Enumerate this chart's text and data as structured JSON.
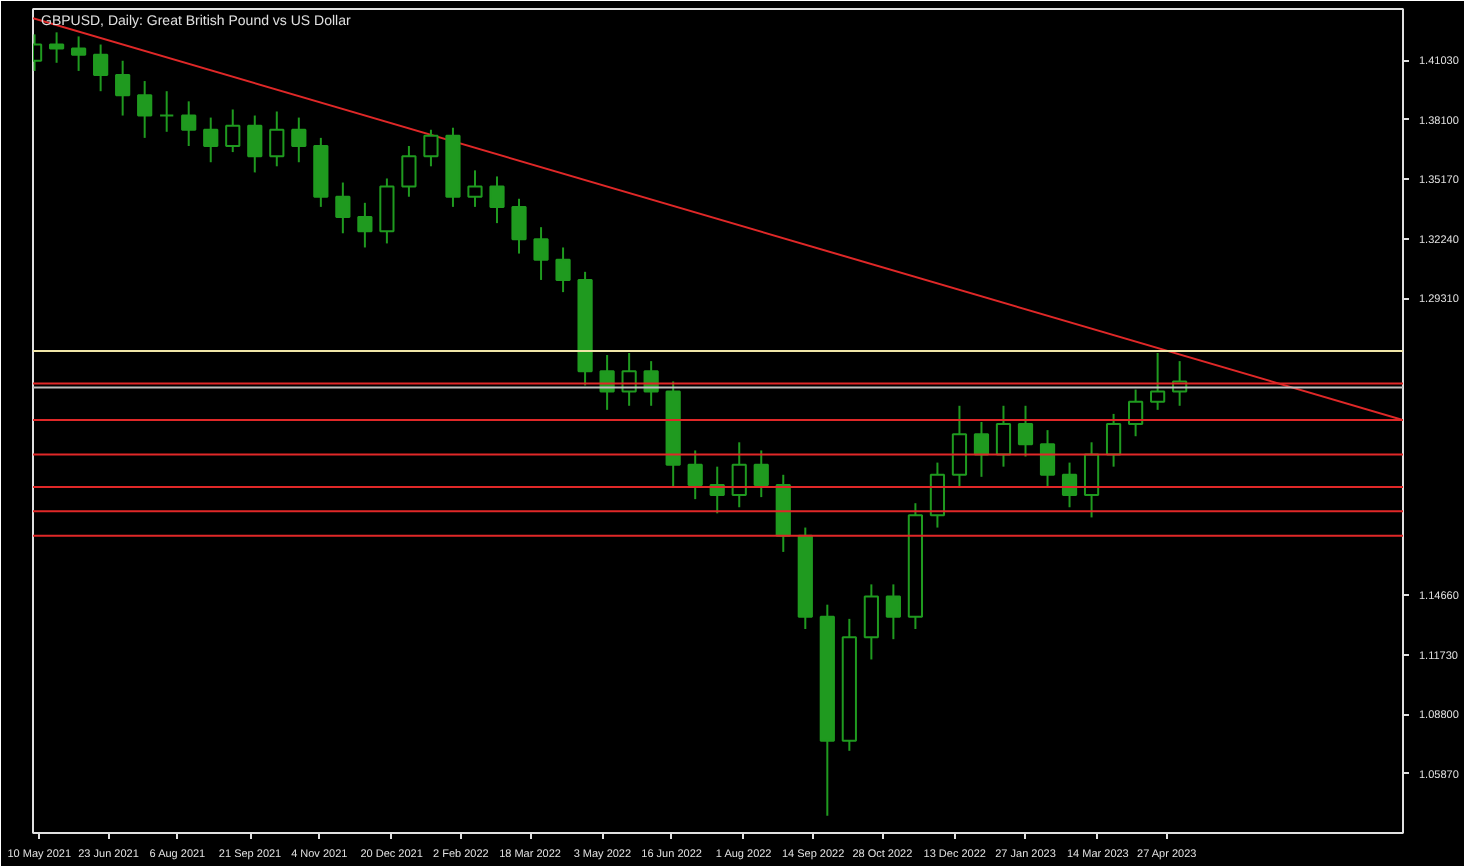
{
  "chart_data": {
    "type": "candlestick",
    "title": "GBPUSD, Daily:  Great British Pound vs US Dollar",
    "x": [
      "2021-05-07",
      "2021-05-21",
      "2021-06-04",
      "2021-06-18",
      "2021-07-02",
      "2021-07-16",
      "2021-07-30",
      "2021-08-13",
      "2021-08-27",
      "2021-09-10",
      "2021-09-24",
      "2021-10-08",
      "2021-10-22",
      "2021-11-05",
      "2021-11-19",
      "2021-12-03",
      "2021-12-17",
      "2021-12-31",
      "2022-01-14",
      "2022-01-28",
      "2022-02-11",
      "2022-02-25",
      "2022-03-11",
      "2022-03-25",
      "2022-04-08",
      "2022-04-22",
      "2022-05-06",
      "2022-05-20",
      "2022-06-03",
      "2022-06-17",
      "2022-07-01",
      "2022-07-15",
      "2022-07-29",
      "2022-08-12",
      "2022-08-26",
      "2022-09-09",
      "2022-09-23",
      "2022-10-07",
      "2022-10-21",
      "2022-11-04",
      "2022-11-18",
      "2022-12-02",
      "2022-12-16",
      "2022-12-30",
      "2023-01-13",
      "2023-01-27",
      "2023-02-10",
      "2023-02-24",
      "2023-03-10",
      "2023-03-24",
      "2023-04-07",
      "2023-04-21",
      "2023-05-05"
    ],
    "ohlc": [
      [
        1.41,
        1.423,
        1.405,
        1.418
      ],
      [
        1.418,
        1.424,
        1.409,
        1.416
      ],
      [
        1.416,
        1.422,
        1.405,
        1.413
      ],
      [
        1.413,
        1.418,
        1.395,
        1.403
      ],
      [
        1.403,
        1.41,
        1.383,
        1.393
      ],
      [
        1.393,
        1.4,
        1.372,
        1.383
      ],
      [
        1.383,
        1.395,
        1.375,
        1.383
      ],
      [
        1.383,
        1.39,
        1.368,
        1.376
      ],
      [
        1.376,
        1.382,
        1.36,
        1.368
      ],
      [
        1.368,
        1.386,
        1.365,
        1.378
      ],
      [
        1.378,
        1.383,
        1.355,
        1.363
      ],
      [
        1.363,
        1.385,
        1.358,
        1.376
      ],
      [
        1.376,
        1.382,
        1.36,
        1.368
      ],
      [
        1.368,
        1.372,
        1.338,
        1.343
      ],
      [
        1.343,
        1.35,
        1.325,
        1.333
      ],
      [
        1.333,
        1.34,
        1.318,
        1.326
      ],
      [
        1.326,
        1.352,
        1.32,
        1.348
      ],
      [
        1.348,
        1.368,
        1.343,
        1.363
      ],
      [
        1.363,
        1.376,
        1.358,
        1.373
      ],
      [
        1.373,
        1.377,
        1.338,
        1.343
      ],
      [
        1.343,
        1.356,
        1.338,
        1.348
      ],
      [
        1.348,
        1.353,
        1.33,
        1.338
      ],
      [
        1.338,
        1.342,
        1.315,
        1.322
      ],
      [
        1.322,
        1.328,
        1.302,
        1.312
      ],
      [
        1.312,
        1.318,
        1.296,
        1.302
      ],
      [
        1.302,
        1.306,
        1.25,
        1.257
      ],
      [
        1.257,
        1.265,
        1.238,
        1.247
      ],
      [
        1.247,
        1.266,
        1.24,
        1.257
      ],
      [
        1.257,
        1.262,
        1.24,
        1.247
      ],
      [
        1.247,
        1.252,
        1.2,
        1.211
      ],
      [
        1.211,
        1.218,
        1.194,
        1.201
      ],
      [
        1.201,
        1.21,
        1.187,
        1.196
      ],
      [
        1.196,
        1.222,
        1.19,
        1.211
      ],
      [
        1.211,
        1.218,
        1.195,
        1.201
      ],
      [
        1.201,
        1.206,
        1.168,
        1.176
      ],
      [
        1.176,
        1.18,
        1.13,
        1.136
      ],
      [
        1.136,
        1.142,
        1.038,
        1.075
      ],
      [
        1.075,
        1.135,
        1.07,
        1.126
      ],
      [
        1.126,
        1.152,
        1.115,
        1.146
      ],
      [
        1.146,
        1.152,
        1.125,
        1.136
      ],
      [
        1.136,
        1.192,
        1.13,
        1.186
      ],
      [
        1.186,
        1.212,
        1.18,
        1.206
      ],
      [
        1.206,
        1.24,
        1.2,
        1.226
      ],
      [
        1.226,
        1.232,
        1.205,
        1.216
      ],
      [
        1.216,
        1.24,
        1.21,
        1.231
      ],
      [
        1.231,
        1.24,
        1.215,
        1.221
      ],
      [
        1.221,
        1.228,
        1.2,
        1.206
      ],
      [
        1.206,
        1.212,
        1.19,
        1.196
      ],
      [
        1.196,
        1.222,
        1.185,
        1.216
      ],
      [
        1.216,
        1.236,
        1.21,
        1.231
      ],
      [
        1.231,
        1.248,
        1.225,
        1.242
      ],
      [
        1.242,
        1.266,
        1.238,
        1.247
      ],
      [
        1.247,
        1.262,
        1.24,
        1.252
      ]
    ],
    "color": "#1f9a1f",
    "series": [
      {
        "type": "line",
        "color": "#e02828",
        "x": [
          "2021-05-06",
          "2023-09-24"
        ],
        "values": [
          1.431,
          1.233
        ]
      }
    ],
    "ref_lines": [
      {
        "axis": "y",
        "value": 1.267,
        "color": "#f0e6a8"
      },
      {
        "axis": "y",
        "value": 1.251,
        "color": "#e02828"
      },
      {
        "axis": "y",
        "value": 1.249,
        "color": "#c0c0c0"
      },
      {
        "axis": "y",
        "value": 1.233,
        "color": "#e02828"
      },
      {
        "axis": "y",
        "value": 1.216,
        "color": "#e02828"
      },
      {
        "axis": "y",
        "value": 1.2,
        "color": "#e02828"
      },
      {
        "axis": "y",
        "value": 1.188,
        "color": "#e02828"
      },
      {
        "axis": "y",
        "value": 1.176,
        "color": "#e02828"
      }
    ],
    "xlim": [
      "2021-05-06",
      "2023-09-24"
    ],
    "xticks": [
      {
        "value": "2021-05-10",
        "label": "10 May 2021"
      },
      {
        "value": "2021-06-23",
        "label": "23 Jun 2021"
      },
      {
        "value": "2021-08-06",
        "label": "6 Aug 2021"
      },
      {
        "value": "2021-09-21",
        "label": "21 Sep 2021"
      },
      {
        "value": "2021-11-04",
        "label": "4 Nov 2021"
      },
      {
        "value": "2021-12-20",
        "label": "20 Dec 2021"
      },
      {
        "value": "2022-02-02",
        "label": "2 Feb 2022"
      },
      {
        "value": "2022-03-18",
        "label": "18 Mar 2022"
      },
      {
        "value": "2022-05-03",
        "label": "3 May 2022"
      },
      {
        "value": "2022-06-16",
        "label": "16 Jun 2022"
      },
      {
        "value": "2022-08-01",
        "label": "1 Aug 2022"
      },
      {
        "value": "2022-09-14",
        "label": "14 Sep 2022"
      },
      {
        "value": "2022-10-28",
        "label": "28 Oct 2022"
      },
      {
        "value": "2022-12-13",
        "label": "13 Dec 2022"
      },
      {
        "value": "2023-01-27",
        "label": "27 Jan 2023"
      },
      {
        "value": "2023-03-14",
        "label": "14 Mar 2023"
      },
      {
        "value": "2023-04-27",
        "label": "27 Apr 2023"
      }
    ],
    "ylim": [
      1.0295,
      1.4355
    ],
    "yticks": [
      {
        "value": 1.4103,
        "label": "1.41030"
      },
      {
        "value": 1.381,
        "label": "1.38100"
      },
      {
        "value": 1.3517,
        "label": "1.35170"
      },
      {
        "value": 1.3224,
        "label": "1.32240"
      },
      {
        "value": 1.2931,
        "label": "1.29310"
      },
      {
        "value": 1.1466,
        "label": "1.14660"
      },
      {
        "value": 1.1173,
        "label": "1.11730"
      },
      {
        "value": 1.088,
        "label": "1.08800"
      },
      {
        "value": 1.0587,
        "label": "1.05870"
      }
    ],
    "grid": false
  }
}
